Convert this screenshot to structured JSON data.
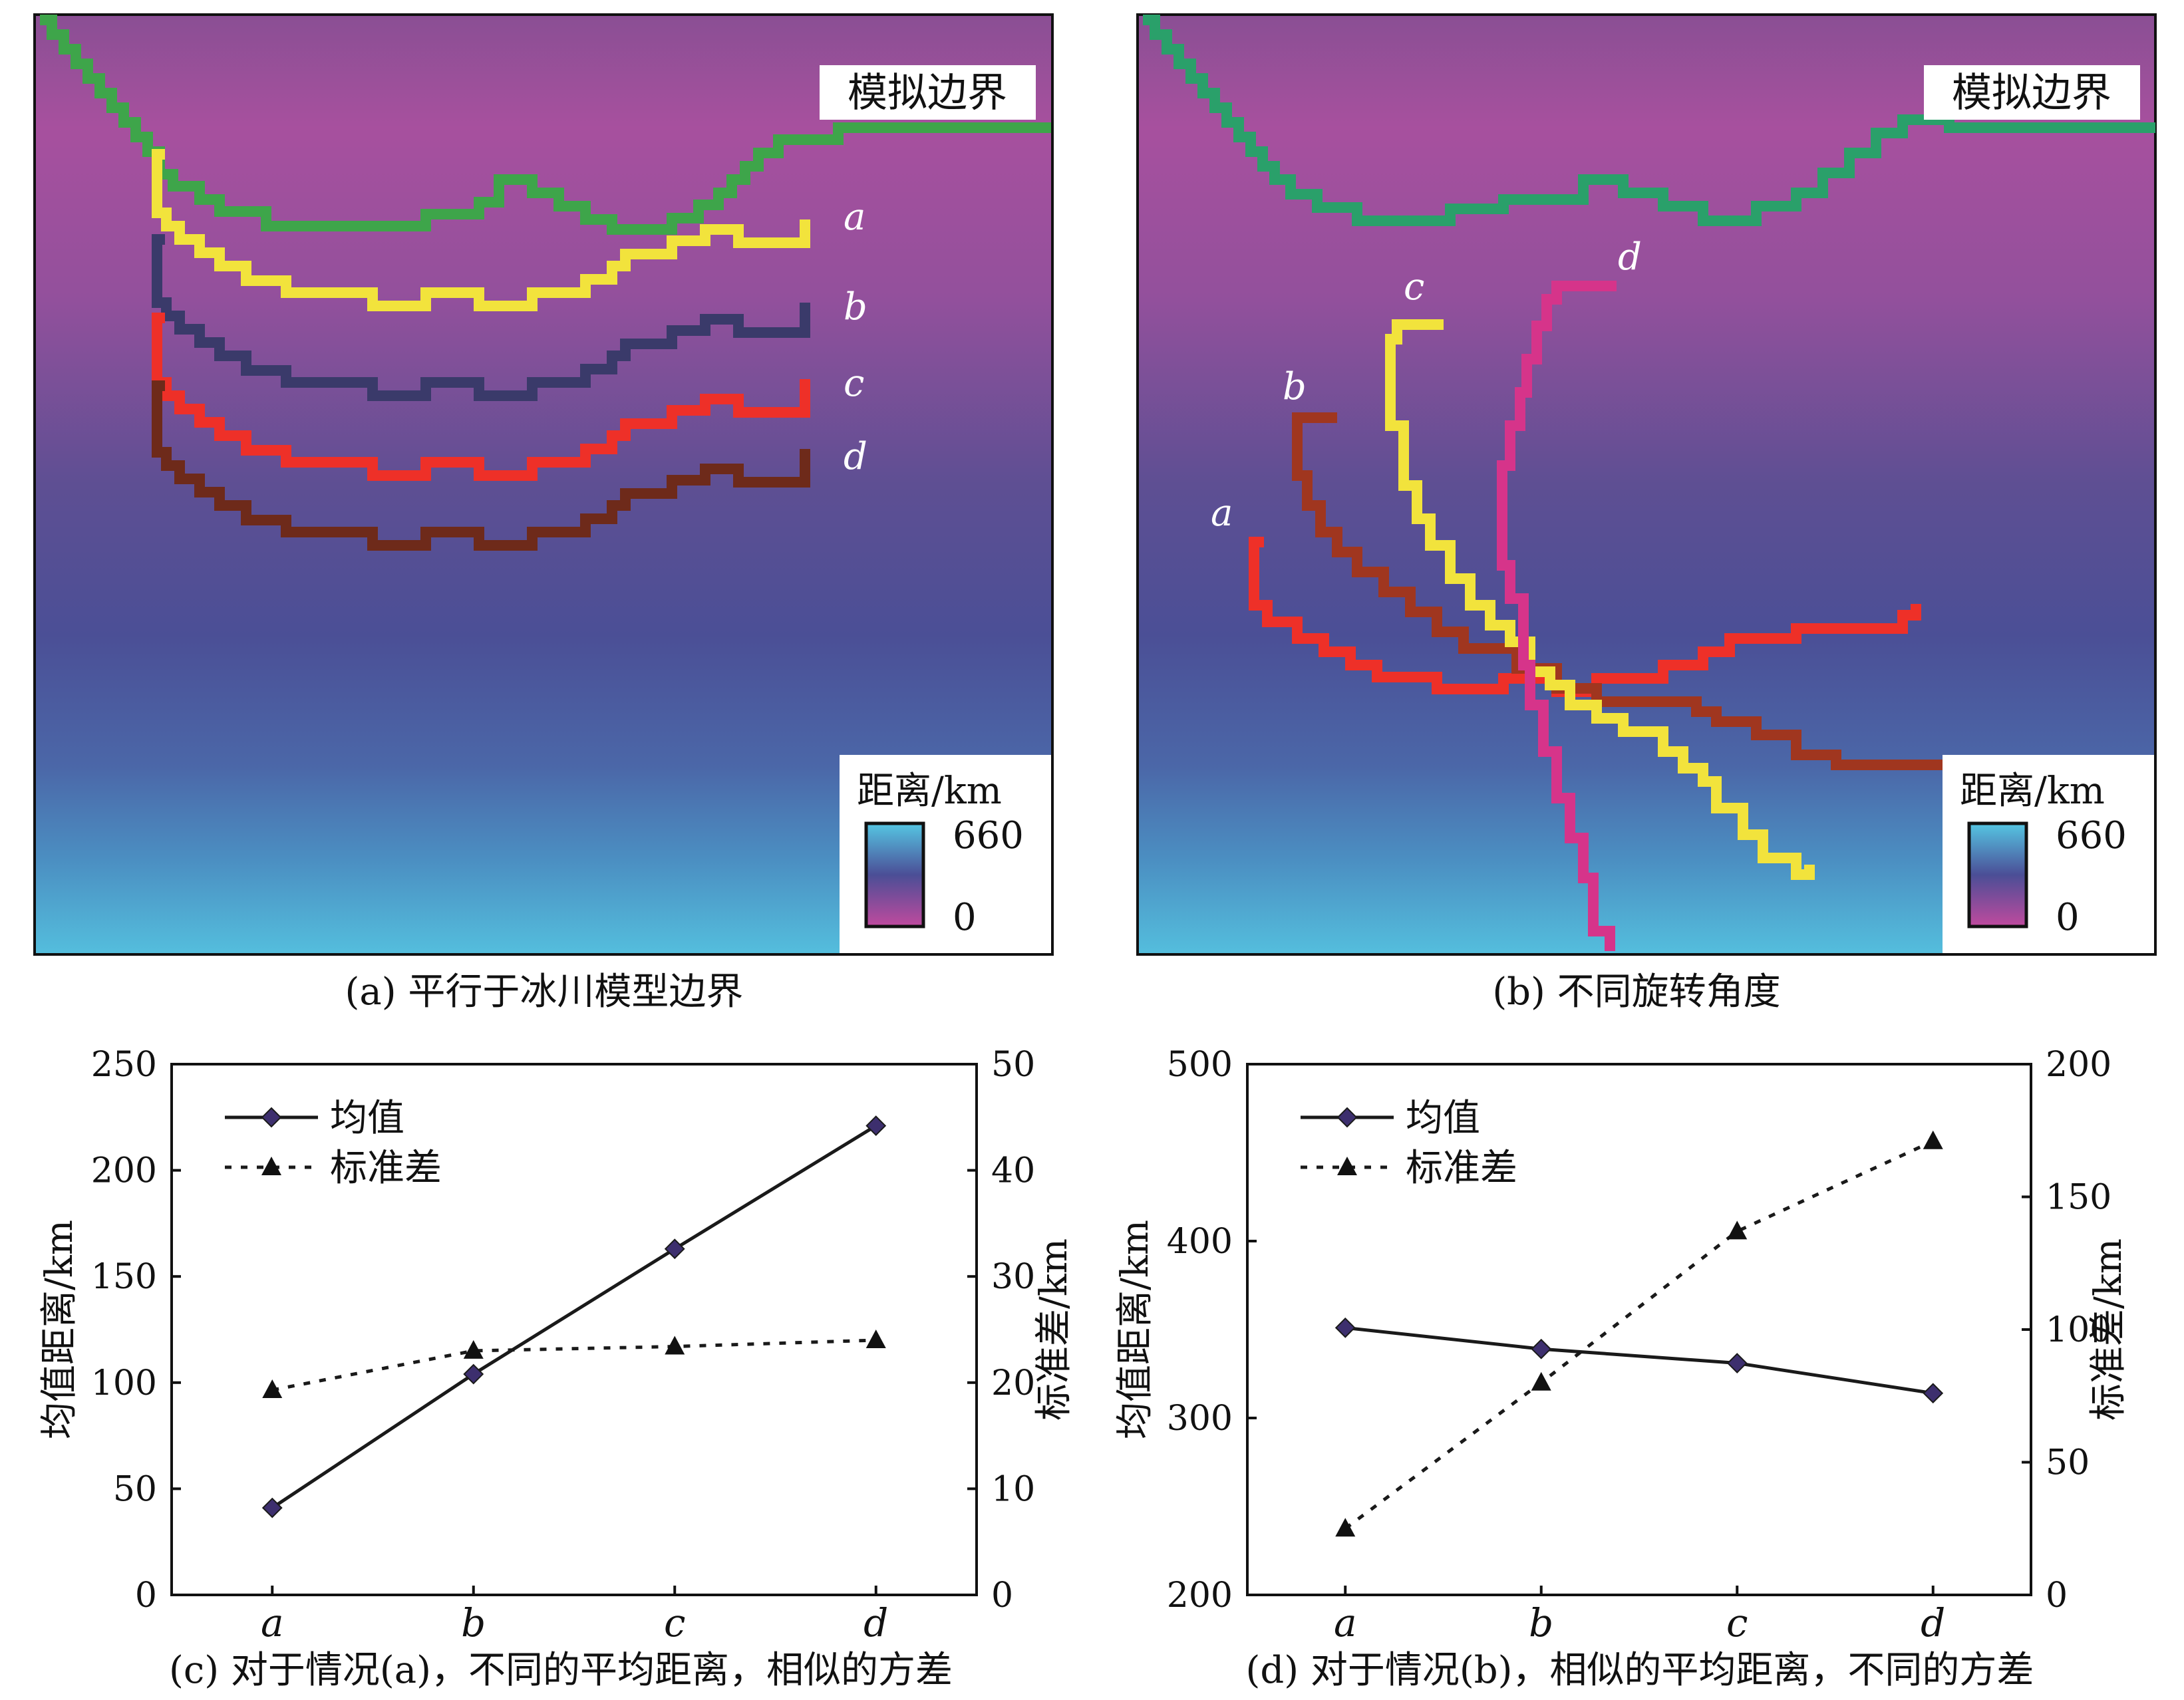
{
  "maps": {
    "a": {
      "caption": "(a) 平行于冰川模型边界",
      "boundary_label": "模拟边界",
      "colorbar": {
        "title": "距离/km",
        "max": "660",
        "min": "0",
        "low_color": "#c04a9e",
        "mid_color": "#4b4e96",
        "high_color": "#55c6e3"
      },
      "line_labels": [
        "a",
        "b",
        "c",
        "d"
      ],
      "line_colors": [
        "#f2e33c",
        "#3a3a6a",
        "#ee3028",
        "#6e2a1a"
      ],
      "boundary_color": "#3ea54a"
    },
    "b": {
      "caption": "(b) 不同旋转角度",
      "boundary_label": "模拟边界",
      "colorbar": {
        "title": "距离/km",
        "max": "660",
        "min": "0",
        "low_color": "#c04a9e",
        "mid_color": "#4b4e96",
        "high_color": "#55c6e3"
      },
      "line_labels": [
        "a",
        "b",
        "c",
        "d"
      ],
      "line_colors": [
        "#ee3028",
        "#a0361f",
        "#f2e33c",
        "#d6348a"
      ],
      "boundary_color": "#2aa06a"
    }
  },
  "chart_data": [
    {
      "type": "line",
      "title": "(c) 对于情况(a)，不同的平均距离，相似的方差",
      "categories": [
        "a",
        "b",
        "c",
        "d"
      ],
      "series": [
        {
          "name": "均值",
          "values": [
            41,
            104,
            163,
            221
          ],
          "axis": "left",
          "style": "solid",
          "marker": "diamond",
          "color": "#1a1a1a",
          "marker_color": "#3d2f6e"
        },
        {
          "name": "标准差",
          "values": [
            19.3,
            23,
            23.4,
            24
          ],
          "axis": "right",
          "style": "dotted",
          "marker": "triangle",
          "color": "#1a1a1a"
        }
      ],
      "ylabel": "均值距离/km",
      "y2label": "标准差/km",
      "ylim": [
        0,
        250
      ],
      "y2lim": [
        0,
        50
      ],
      "yticks": [
        "0",
        "50",
        "100",
        "150",
        "200",
        "250"
      ],
      "y2ticks": [
        "0",
        "10",
        "20",
        "30",
        "40",
        "50"
      ],
      "legend_position": "top-left"
    },
    {
      "type": "line",
      "title": "(d) 对于情况(b)，相似的平均距离，不同的方差",
      "categories": [
        "a",
        "b",
        "c",
        "d"
      ],
      "series": [
        {
          "name": "均值",
          "values": [
            351,
            339,
            331,
            314
          ],
          "axis": "left",
          "style": "solid",
          "marker": "diamond",
          "color": "#1a1a1a",
          "marker_color": "#3d2f6e"
        },
        {
          "name": "标准差",
          "values": [
            25,
            80,
            137,
            171
          ],
          "axis": "right",
          "style": "dotted",
          "marker": "triangle",
          "color": "#1a1a1a"
        }
      ],
      "ylabel": "均值距离/km",
      "y2label": "标准差/km",
      "ylim": [
        200,
        500
      ],
      "y2lim": [
        0,
        200
      ],
      "yticks": [
        "200",
        "300",
        "400",
        "500"
      ],
      "y2ticks": [
        "0",
        "50",
        "100",
        "150",
        "200"
      ],
      "legend_position": "top-left"
    }
  ]
}
